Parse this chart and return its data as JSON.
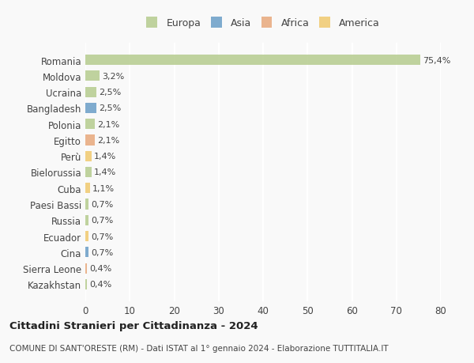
{
  "countries": [
    "Romania",
    "Moldova",
    "Ucraina",
    "Bangladesh",
    "Polonia",
    "Egitto",
    "Perù",
    "Bielorussia",
    "Cuba",
    "Paesi Bassi",
    "Russia",
    "Ecuador",
    "Cina",
    "Sierra Leone",
    "Kazakhstan"
  ],
  "values": [
    75.4,
    3.2,
    2.5,
    2.5,
    2.1,
    2.1,
    1.4,
    1.4,
    1.1,
    0.7,
    0.7,
    0.7,
    0.7,
    0.4,
    0.4
  ],
  "labels": [
    "75,4%",
    "3,2%",
    "2,5%",
    "2,5%",
    "2,1%",
    "2,1%",
    "1,4%",
    "1,4%",
    "1,1%",
    "0,7%",
    "0,7%",
    "0,7%",
    "0,7%",
    "0,4%",
    "0,4%"
  ],
  "continents": [
    "Europa",
    "Europa",
    "Europa",
    "Asia",
    "Europa",
    "Africa",
    "America",
    "Europa",
    "America",
    "Europa",
    "Europa",
    "America",
    "Asia",
    "Africa",
    "Europa"
  ],
  "colors": {
    "Europa": "#b5cc8e",
    "Asia": "#6a9ec7",
    "Africa": "#e8a87c",
    "America": "#f0c96e"
  },
  "legend_colors": {
    "Europa": "#b5cc8e",
    "Asia": "#6a9ec7",
    "Africa": "#e8a87c",
    "America": "#f0c96e"
  },
  "title": "Cittadini Stranieri per Cittadinanza - 2024",
  "subtitle": "COMUNE DI SANT'ORESTE (RM) - Dati ISTAT al 1° gennaio 2024 - Elaborazione TUTTITALIA.IT",
  "xlim": [
    0,
    80
  ],
  "xticks": [
    0,
    10,
    20,
    30,
    40,
    50,
    60,
    70,
    80
  ],
  "background_color": "#f9f9f9",
  "grid_color": "#ffffff",
  "bar_height": 0.65
}
